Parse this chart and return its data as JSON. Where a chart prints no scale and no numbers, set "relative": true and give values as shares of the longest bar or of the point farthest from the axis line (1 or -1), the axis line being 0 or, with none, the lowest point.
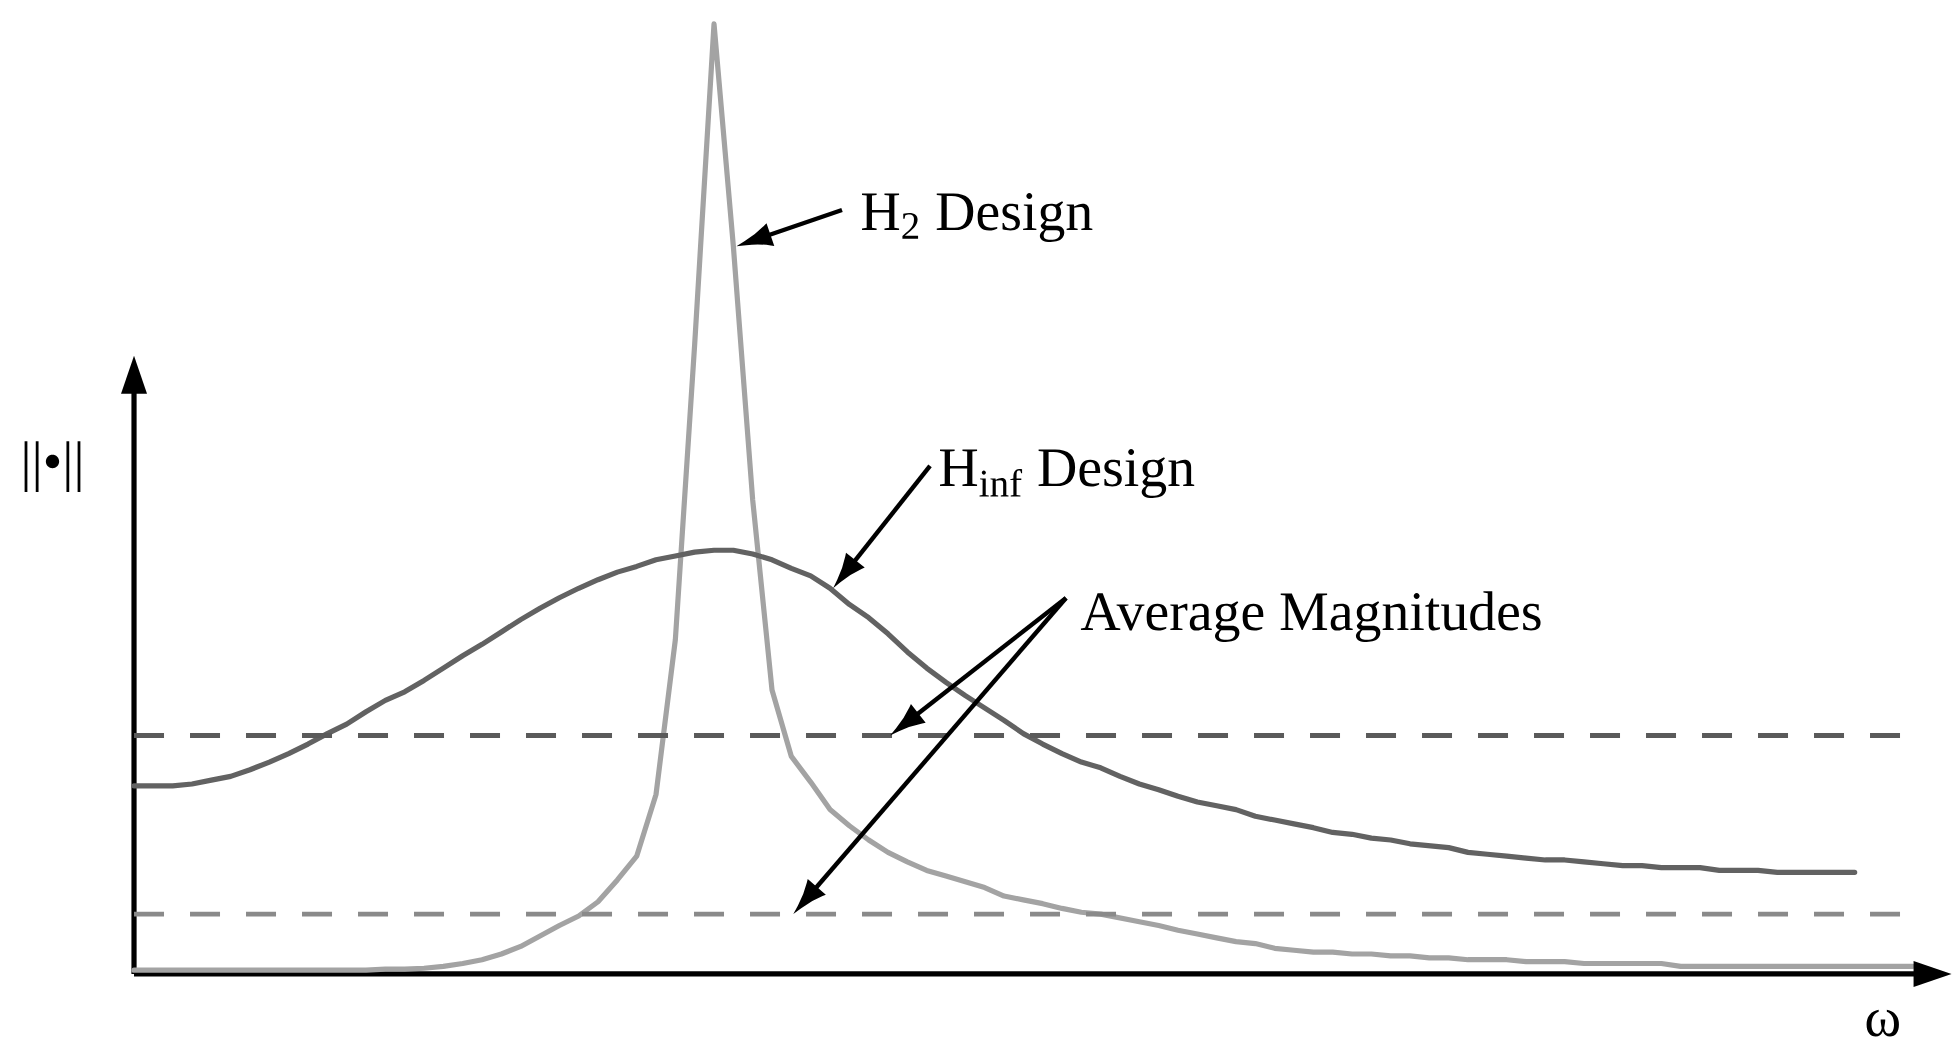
{
  "chart_data": {
    "type": "line",
    "relative": true,
    "marker": "none",
    "xlabel": "ω",
    "ylabel": "||•||",
    "categories": [
      null,
      null,
      null,
      null,
      null,
      null,
      null,
      null,
      null,
      null,
      null,
      null,
      null,
      null,
      null,
      null,
      null,
      null,
      null,
      null,
      null,
      null,
      null,
      null,
      null,
      null,
      null,
      null,
      null,
      null,
      null,
      null,
      null,
      null,
      null,
      null,
      null,
      null,
      null,
      null,
      null,
      null,
      null,
      null,
      null,
      null,
      null,
      null,
      null,
      null,
      null,
      null,
      null,
      null,
      null,
      null,
      null,
      null,
      null,
      null,
      null,
      null,
      null,
      null,
      null,
      null,
      null,
      null,
      null,
      null,
      null,
      null,
      null,
      null,
      null,
      null,
      null,
      null,
      null,
      null,
      null,
      null,
      null,
      null,
      null,
      null,
      null,
      null,
      null,
      null,
      null,
      null,
      null
    ],
    "series": [
      {
        "name": "H$_{2}$ Design",
        "color": "#a3a3a3",
        "values": [
          0.004,
          0.004,
          0.004,
          0.004,
          0.004,
          0.004,
          0.004,
          0.004,
          0.004,
          0.004,
          0.004,
          0.004,
          0.004,
          0.005,
          0.005,
          0.006,
          0.008,
          0.011,
          0.015,
          0.021,
          0.029,
          0.04,
          0.051,
          0.061,
          0.076,
          0.099,
          0.124,
          0.189,
          0.352,
          0.663,
          1,
          0.766,
          0.499,
          0.299,
          0.229,
          0.202,
          0.173,
          0.156,
          0.141,
          0.128,
          0.118,
          0.109,
          0.103,
          0.097,
          0.091,
          0.082,
          0.078,
          0.074,
          0.069,
          0.065,
          0.063,
          0.059,
          0.055,
          0.051,
          0.046,
          0.042,
          0.038,
          0.034,
          0.032,
          0.027,
          0.025,
          0.023,
          0.023,
          0.021,
          0.021,
          0.019,
          0.019,
          0.017,
          0.017,
          0.015,
          0.015,
          0.015,
          0.013,
          0.013,
          0.013,
          0.011,
          0.011,
          0.011,
          0.011,
          0.011,
          0.008,
          0.008,
          0.008,
          0.008,
          0.008,
          0.008,
          0.008,
          0.008,
          0.008,
          0.008,
          0.008,
          0.008,
          0.008
        ]
      },
      {
        "name": "H$_{inf}$ Design",
        "color": "#626262",
        "values": [
          0.198,
          0.198,
          0.198,
          0.2,
          0.204,
          0.208,
          0.215,
          0.223,
          0.232,
          0.242,
          0.253,
          0.263,
          0.276,
          0.288,
          0.297,
          0.309,
          0.322,
          0.335,
          0.347,
          0.36,
          0.373,
          0.385,
          0.396,
          0.406,
          0.415,
          0.423,
          0.429,
          0.436,
          0.44,
          0.444,
          0.446,
          0.446,
          0.442,
          0.436,
          0.427,
          0.419,
          0.406,
          0.389,
          0.375,
          0.358,
          0.339,
          0.322,
          0.307,
          0.293,
          0.28,
          0.267,
          0.253,
          0.242,
          0.232,
          0.223,
          0.217,
          0.208,
          0.2,
          0.194,
          0.187,
          0.181,
          0.177,
          0.173,
          0.166,
          0.162,
          0.158,
          0.154,
          0.149,
          0.147,
          0.143,
          0.141,
          0.137,
          0.135,
          0.133,
          0.128,
          0.126,
          0.124,
          0.122,
          0.12,
          0.12,
          0.118,
          0.116,
          0.114,
          0.114,
          0.112,
          0.112,
          0.112,
          0.109,
          0.109,
          0.109,
          0.107,
          0.107,
          0.107,
          0.107,
          0.107,
          null,
          null,
          null
        ]
      }
    ],
    "ref_lines": [
      {
        "axis": "y",
        "value": 0.251,
        "color": "#5a5a5a",
        "line_style": "dashed"
      },
      {
        "axis": "y",
        "value": 0.063,
        "color": "#8a8a8a",
        "line_style": "dashed"
      }
    ],
    "annotations": [
      "Average Magnitudes"
    ]
  }
}
